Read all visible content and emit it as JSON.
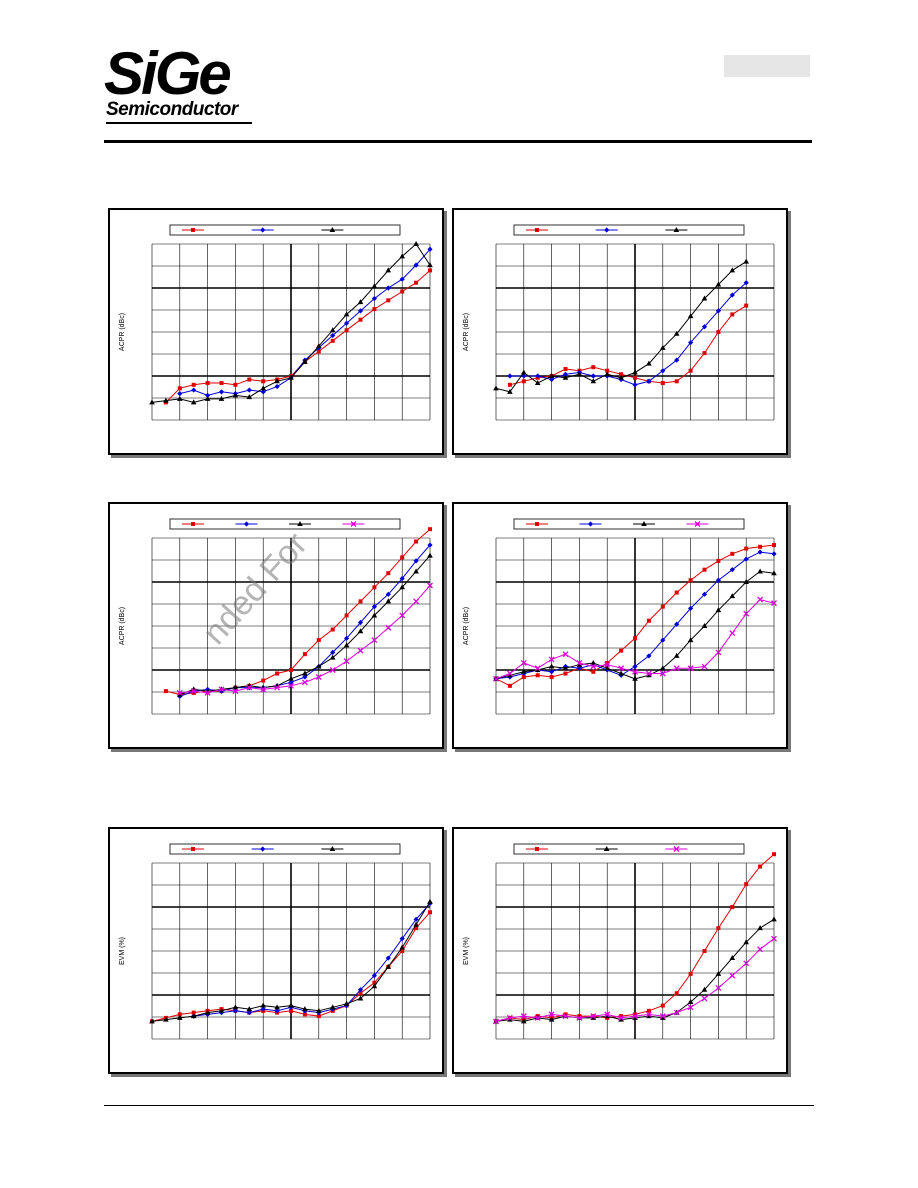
{
  "header": {
    "logo_main": "SiGe",
    "logo_sub": "Semiconductor"
  },
  "watermark": "nded For",
  "colors": {
    "red": "#e00000",
    "blue": "#0000dd",
    "black": "#000000",
    "magenta": "#dd00dd"
  },
  "chart_data": [
    {
      "type": "line",
      "ylabel": "ACPR (dBc)",
      "legend": "top",
      "grid": true,
      "series": [
        {
          "color": "red",
          "marker": "square",
          "x": [
            1,
            2,
            3,
            4,
            5,
            6,
            7,
            8,
            9,
            10,
            11,
            12,
            13,
            14,
            15,
            16,
            17,
            18,
            19,
            20
          ],
          "y": [
            1.0,
            1.8,
            2.0,
            2.1,
            2.1,
            2.0,
            2.3,
            2.2,
            2.3,
            2.5,
            3.3,
            3.9,
            4.5,
            5.1,
            5.7,
            6.3,
            6.8,
            7.3,
            7.8,
            8.5
          ]
        },
        {
          "color": "blue",
          "marker": "diamond",
          "x": [
            2,
            3,
            4,
            5,
            6,
            7,
            8,
            9,
            10,
            11,
            12,
            13,
            14,
            15,
            16,
            17,
            18,
            19,
            20
          ],
          "y": [
            1.5,
            1.7,
            1.4,
            1.6,
            1.5,
            1.7,
            1.6,
            1.9,
            2.4,
            3.4,
            4.1,
            4.8,
            5.5,
            6.2,
            6.9,
            7.5,
            8.0,
            8.8,
            9.7
          ]
        },
        {
          "color": "black",
          "marker": "triangle",
          "x": [
            0,
            1,
            2,
            3,
            4,
            5,
            6,
            7,
            8,
            9,
            10,
            11,
            12,
            13,
            14,
            15,
            16,
            17,
            18,
            19,
            20
          ],
          "y": [
            1.0,
            1.1,
            1.2,
            1.0,
            1.2,
            1.2,
            1.4,
            1.3,
            1.8,
            2.2,
            2.4,
            3.3,
            4.2,
            5.1,
            6.0,
            6.7,
            7.6,
            8.5,
            9.3,
            10.0,
            8.8
          ]
        }
      ]
    },
    {
      "type": "line",
      "ylabel": "ACPR (dBc)",
      "legend": "top",
      "grid": true,
      "series": [
        {
          "color": "red",
          "marker": "square",
          "x": [
            1,
            2,
            3,
            4,
            5,
            6,
            7,
            8,
            9,
            10,
            11,
            12,
            13,
            14,
            15,
            16,
            17,
            18
          ],
          "y": [
            2.0,
            2.2,
            2.4,
            2.5,
            2.9,
            2.8,
            3.0,
            2.8,
            2.6,
            2.4,
            2.2,
            2.1,
            2.2,
            2.8,
            3.8,
            5.0,
            6.0,
            6.5
          ]
        },
        {
          "color": "blue",
          "marker": "diamond",
          "x": [
            1,
            2,
            3,
            4,
            5,
            6,
            7,
            8,
            9,
            10,
            11,
            12,
            13,
            14,
            15,
            16,
            17,
            18
          ],
          "y": [
            2.5,
            2.5,
            2.5,
            2.3,
            2.6,
            2.7,
            2.5,
            2.5,
            2.3,
            2.0,
            2.2,
            2.8,
            3.4,
            4.4,
            5.3,
            6.2,
            7.1,
            7.8
          ]
        },
        {
          "color": "black",
          "marker": "triangle",
          "x": [
            0,
            1,
            2,
            3,
            4,
            5,
            6,
            7,
            8,
            9,
            10,
            11,
            12,
            13,
            14,
            15,
            16,
            17,
            18
          ],
          "y": [
            1.8,
            1.6,
            2.7,
            2.1,
            2.5,
            2.4,
            2.6,
            2.2,
            2.6,
            2.4,
            2.7,
            3.2,
            4.1,
            4.9,
            5.9,
            6.9,
            7.7,
            8.5,
            9.0
          ]
        }
      ]
    },
    {
      "type": "line",
      "ylabel": "ACPR (dBc)",
      "legend": "top",
      "grid": true,
      "series": [
        {
          "color": "red",
          "marker": "square",
          "x": [
            1,
            2,
            3,
            4,
            5,
            6,
            7,
            8,
            9,
            10,
            11,
            12,
            13,
            14,
            15,
            16,
            17,
            18,
            19,
            20
          ],
          "y": [
            1.3,
            1.1,
            1.2,
            1.3,
            1.3,
            1.5,
            1.6,
            1.9,
            2.3,
            2.5,
            3.4,
            4.2,
            4.8,
            5.6,
            6.4,
            7.2,
            8.0,
            8.9,
            9.8,
            10.5
          ]
        },
        {
          "color": "blue",
          "marker": "diamond",
          "x": [
            2,
            3,
            4,
            5,
            6,
            7,
            8,
            9,
            10,
            11,
            12,
            13,
            14,
            15,
            16,
            17,
            18,
            19,
            20
          ],
          "y": [
            1.0,
            1.3,
            1.4,
            1.3,
            1.5,
            1.5,
            1.5,
            1.6,
            1.8,
            2.1,
            2.7,
            3.5,
            4.3,
            5.2,
            6.1,
            6.8,
            7.7,
            8.7,
            9.6
          ]
        },
        {
          "color": "black",
          "marker": "triangle",
          "x": [
            2,
            3,
            4,
            5,
            6,
            7,
            8,
            9,
            10,
            11,
            12,
            13,
            14,
            15,
            16,
            17,
            18,
            19,
            20
          ],
          "y": [
            1.1,
            1.4,
            1.3,
            1.4,
            1.5,
            1.6,
            1.5,
            1.6,
            2.0,
            2.3,
            2.7,
            3.2,
            3.9,
            4.7,
            5.6,
            6.4,
            7.2,
            8.1,
            9.0
          ]
        },
        {
          "color": "magenta",
          "marker": "cross",
          "x": [
            2,
            3,
            4,
            5,
            6,
            7,
            8,
            9,
            10,
            11,
            12,
            13,
            14,
            15,
            16,
            17,
            18,
            19,
            20
          ],
          "y": [
            1.2,
            1.3,
            1.2,
            1.4,
            1.3,
            1.5,
            1.4,
            1.5,
            1.6,
            1.8,
            2.1,
            2.5,
            3.0,
            3.6,
            4.2,
            4.9,
            5.6,
            6.4,
            7.3
          ]
        }
      ]
    },
    {
      "type": "line",
      "ylabel": "ACPR (dBc)",
      "legend": "top",
      "grid": true,
      "series": [
        {
          "color": "red",
          "marker": "square",
          "x": [
            0,
            1,
            2,
            3,
            4,
            5,
            6,
            7,
            8,
            9,
            10,
            11,
            12,
            13,
            14,
            15,
            16,
            17,
            18,
            19,
            20
          ],
          "y": [
            2.0,
            1.6,
            2.1,
            2.2,
            2.1,
            2.3,
            2.6,
            2.4,
            2.9,
            3.6,
            4.3,
            5.3,
            6.1,
            6.9,
            7.6,
            8.2,
            8.7,
            9.1,
            9.4,
            9.5,
            9.6
          ]
        },
        {
          "color": "blue",
          "marker": "diamond",
          "x": [
            0,
            1,
            2,
            3,
            4,
            5,
            6,
            7,
            8,
            9,
            10,
            11,
            12,
            13,
            14,
            15,
            16,
            17,
            18,
            19,
            20
          ],
          "y": [
            2.0,
            2.1,
            2.3,
            2.5,
            2.4,
            2.7,
            2.6,
            2.8,
            2.5,
            2.2,
            2.7,
            3.3,
            4.2,
            5.1,
            6.0,
            6.8,
            7.6,
            8.2,
            8.8,
            9.2,
            9.1
          ]
        },
        {
          "color": "black",
          "marker": "triangle",
          "x": [
            0,
            1,
            2,
            3,
            4,
            5,
            6,
            7,
            8,
            9,
            10,
            11,
            12,
            13,
            14,
            15,
            16,
            17,
            18,
            19,
            20
          ],
          "y": [
            2.0,
            2.2,
            2.4,
            2.5,
            2.7,
            2.6,
            2.8,
            2.9,
            2.6,
            2.3,
            2.0,
            2.2,
            2.6,
            3.3,
            4.2,
            5.0,
            5.9,
            6.7,
            7.5,
            8.1,
            8.0
          ]
        },
        {
          "color": "magenta",
          "marker": "cross",
          "x": [
            0,
            1,
            2,
            3,
            4,
            5,
            6,
            7,
            8,
            9,
            10,
            11,
            12,
            13,
            14,
            15,
            16,
            17,
            18,
            19,
            20
          ],
          "y": [
            2.0,
            2.3,
            2.9,
            2.6,
            3.1,
            3.4,
            2.9,
            2.7,
            2.8,
            2.6,
            2.4,
            2.3,
            2.3,
            2.6,
            2.6,
            2.7,
            3.5,
            4.6,
            5.7,
            6.5,
            6.3
          ]
        }
      ]
    },
    {
      "type": "line",
      "ylabel": "EVM (%)",
      "legend": "top",
      "grid": true,
      "series": [
        {
          "color": "red",
          "marker": "square",
          "x": [
            0,
            1,
            2,
            3,
            4,
            5,
            6,
            7,
            8,
            9,
            10,
            11,
            12,
            13,
            14,
            15,
            16,
            17,
            18,
            19,
            20
          ],
          "y": [
            1.0,
            1.2,
            1.4,
            1.5,
            1.6,
            1.7,
            1.6,
            1.5,
            1.6,
            1.5,
            1.6,
            1.4,
            1.3,
            1.6,
            1.9,
            2.6,
            3.2,
            4.1,
            5.0,
            6.3,
            7.2
          ]
        },
        {
          "color": "blue",
          "marker": "diamond",
          "x": [
            3,
            4,
            5,
            6,
            7,
            8,
            9,
            10,
            11,
            12,
            13,
            14,
            15,
            16,
            17,
            18,
            19,
            20
          ],
          "y": [
            1.3,
            1.4,
            1.5,
            1.6,
            1.5,
            1.7,
            1.6,
            1.8,
            1.6,
            1.5,
            1.7,
            1.9,
            2.8,
            3.6,
            4.6,
            5.7,
            6.8,
            7.7
          ]
        },
        {
          "color": "black",
          "marker": "triangle",
          "x": [
            0,
            1,
            2,
            3,
            4,
            5,
            6,
            7,
            8,
            9,
            10,
            11,
            12,
            13,
            14,
            15,
            16,
            17,
            18,
            19,
            20
          ],
          "y": [
            1.0,
            1.1,
            1.2,
            1.3,
            1.5,
            1.6,
            1.8,
            1.7,
            1.9,
            1.8,
            1.9,
            1.7,
            1.6,
            1.8,
            2.0,
            2.3,
            3.0,
            4.1,
            5.2,
            6.5,
            7.8
          ]
        }
      ]
    },
    {
      "type": "line",
      "ylabel": "EVM (%)",
      "legend": "top",
      "grid": true,
      "series": [
        {
          "color": "red",
          "marker": "square",
          "x": [
            0,
            1,
            2,
            3,
            4,
            5,
            6,
            7,
            8,
            9,
            10,
            11,
            12,
            13,
            14,
            15,
            16,
            17,
            18,
            19,
            20
          ],
          "y": [
            1.0,
            1.2,
            1.1,
            1.3,
            1.2,
            1.4,
            1.3,
            1.3,
            1.2,
            1.3,
            1.4,
            1.6,
            1.9,
            2.6,
            3.7,
            5.0,
            6.3,
            7.5,
            8.8,
            9.8,
            10.5
          ]
        },
        {
          "color": "black",
          "marker": "triangle",
          "x": [
            0,
            1,
            2,
            3,
            4,
            5,
            6,
            7,
            8,
            9,
            10,
            11,
            12,
            13,
            14,
            15,
            16,
            17,
            18,
            19,
            20
          ],
          "y": [
            1.0,
            1.1,
            1.0,
            1.2,
            1.1,
            1.3,
            1.2,
            1.2,
            1.3,
            1.1,
            1.2,
            1.3,
            1.2,
            1.5,
            2.1,
            2.8,
            3.7,
            4.6,
            5.5,
            6.3,
            6.8
          ]
        },
        {
          "color": "magenta",
          "marker": "cross",
          "x": [
            0,
            1,
            2,
            3,
            4,
            5,
            6,
            7,
            8,
            9,
            10,
            11,
            12,
            13,
            14,
            15,
            16,
            17,
            18,
            19,
            20
          ],
          "y": [
            1.0,
            1.2,
            1.3,
            1.2,
            1.4,
            1.3,
            1.2,
            1.3,
            1.4,
            1.2,
            1.3,
            1.4,
            1.3,
            1.5,
            1.8,
            2.3,
            2.9,
            3.6,
            4.3,
            5.1,
            5.7
          ]
        }
      ]
    }
  ]
}
